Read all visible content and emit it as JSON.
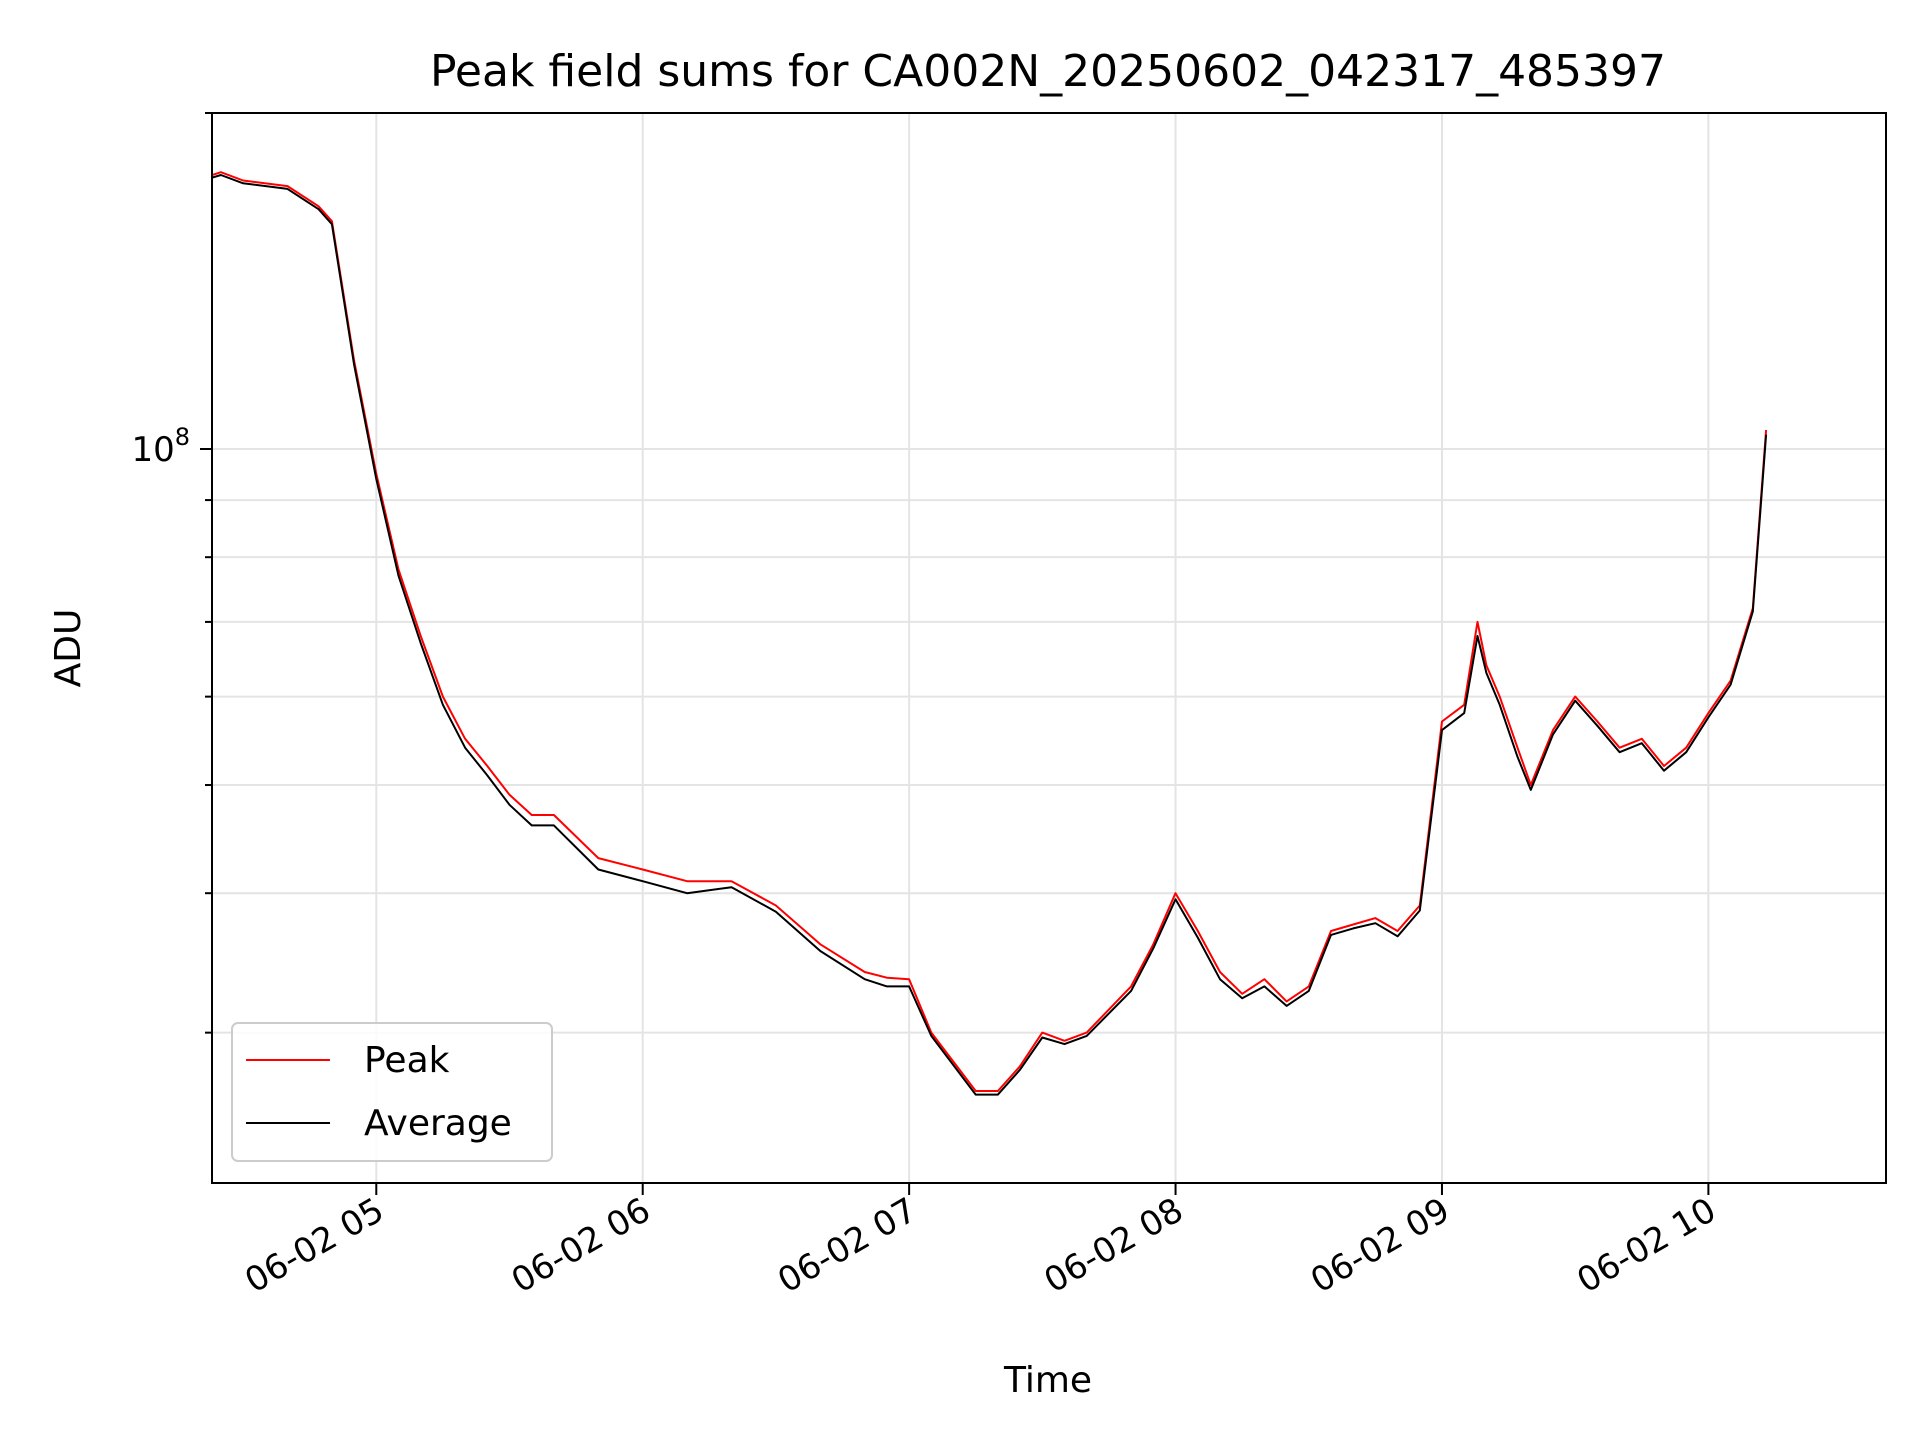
{
  "chart_data": {
    "type": "line",
    "title": "Peak field sums for CA002N_20250602_042317_485397",
    "xlabel": "Time",
    "ylabel": "ADU",
    "y_scale": "log",
    "grid": true,
    "legend_position": "lower-left",
    "x_range": [
      "06-02 04:23",
      "06-02 10:40"
    ],
    "y_range": [
      22000000,
      200000000
    ],
    "x_ticks": [
      "06-02 05",
      "06-02 06",
      "06-02 07",
      "06-02 08",
      "06-02 09",
      "06-02 10"
    ],
    "y_tick_label": {
      "base": "10",
      "exp": "8"
    },
    "colors": {
      "peak": "#ff0000",
      "average": "#000000"
    },
    "series": [
      {
        "name": "Peak",
        "x": [
          "06-02 04:23",
          "06-02 04:25",
          "06-02 04:30",
          "06-02 04:40",
          "06-02 04:47",
          "06-02 04:50",
          "06-02 04:55",
          "06-02 05:00",
          "06-02 05:05",
          "06-02 05:10",
          "06-02 05:15",
          "06-02 05:20",
          "06-02 05:25",
          "06-02 05:30",
          "06-02 05:35",
          "06-02 05:40",
          "06-02 05:50",
          "06-02 06:00",
          "06-02 06:10",
          "06-02 06:20",
          "06-02 06:30",
          "06-02 06:40",
          "06-02 06:50",
          "06-02 06:55",
          "06-02 07:00",
          "06-02 07:05",
          "06-02 07:15",
          "06-02 07:20",
          "06-02 07:25",
          "06-02 07:30",
          "06-02 07:35",
          "06-02 07:40",
          "06-02 07:50",
          "06-02 07:55",
          "06-02 08:00",
          "06-02 08:05",
          "06-02 08:10",
          "06-02 08:15",
          "06-02 08:20",
          "06-02 08:25",
          "06-02 08:30",
          "06-02 08:35",
          "06-02 08:40",
          "06-02 08:45",
          "06-02 08:50",
          "06-02 08:55",
          "06-02 09:00",
          "06-02 09:05",
          "06-02 09:08",
          "06-02 09:10",
          "06-02 09:13",
          "06-02 09:17",
          "06-02 09:20",
          "06-02 09:25",
          "06-02 09:30",
          "06-02 09:35",
          "06-02 09:40",
          "06-02 09:45",
          "06-02 09:50",
          "06-02 09:55",
          "06-02 10:00",
          "06-02 10:05",
          "06-02 10:10",
          "06-02 10:13"
        ],
        "values": [
          176000000,
          177000000,
          174000000,
          172000000,
          165000000,
          160000000,
          120000000,
          95000000,
          78000000,
          68000000,
          60000000,
          55000000,
          52000000,
          49000000,
          47000000,
          47000000,
          43000000,
          42000000,
          41000000,
          41000000,
          39000000,
          36000000,
          34000000,
          33600000,
          33500000,
          30000000,
          26600000,
          26600000,
          28000000,
          30000000,
          29500000,
          30000000,
          33000000,
          36000000,
          40000000,
          37000000,
          34000000,
          32500000,
          33500000,
          32000000,
          33000000,
          37000000,
          37500000,
          38000000,
          37000000,
          39000000,
          57000000,
          59000000,
          70000000,
          64000000,
          60000000,
          54000000,
          50000000,
          56000000,
          60000000,
          57000000,
          54000000,
          55000000,
          52000000,
          54000000,
          58000000,
          62000000,
          72000000,
          104000000
        ]
      },
      {
        "name": "Average",
        "x": [
          "06-02 04:23",
          "06-02 04:25",
          "06-02 04:30",
          "06-02 04:40",
          "06-02 04:47",
          "06-02 04:50",
          "06-02 04:55",
          "06-02 05:00",
          "06-02 05:05",
          "06-02 05:10",
          "06-02 05:15",
          "06-02 05:20",
          "06-02 05:25",
          "06-02 05:30",
          "06-02 05:35",
          "06-02 05:40",
          "06-02 05:50",
          "06-02 06:00",
          "06-02 06:10",
          "06-02 06:20",
          "06-02 06:30",
          "06-02 06:40",
          "06-02 06:50",
          "06-02 06:55",
          "06-02 07:00",
          "06-02 07:05",
          "06-02 07:15",
          "06-02 07:20",
          "06-02 07:25",
          "06-02 07:30",
          "06-02 07:35",
          "06-02 07:40",
          "06-02 07:50",
          "06-02 07:55",
          "06-02 08:00",
          "06-02 08:05",
          "06-02 08:10",
          "06-02 08:15",
          "06-02 08:20",
          "06-02 08:25",
          "06-02 08:30",
          "06-02 08:35",
          "06-02 08:40",
          "06-02 08:45",
          "06-02 08:50",
          "06-02 08:55",
          "06-02 09:00",
          "06-02 09:05",
          "06-02 09:08",
          "06-02 09:10",
          "06-02 09:13",
          "06-02 09:17",
          "06-02 09:20",
          "06-02 09:25",
          "06-02 09:30",
          "06-02 09:35",
          "06-02 09:40",
          "06-02 09:45",
          "06-02 09:50",
          "06-02 09:55",
          "06-02 10:00",
          "06-02 10:05",
          "06-02 10:10",
          "06-02 10:13"
        ],
        "values": [
          175000000,
          176000000,
          173000000,
          171000000,
          164000000,
          159000000,
          119000000,
          94000000,
          77000000,
          67000000,
          59000000,
          54000000,
          51000000,
          48000000,
          46000000,
          46000000,
          42000000,
          41000000,
          40000000,
          40500000,
          38500000,
          35500000,
          33500000,
          33000000,
          33000000,
          29800000,
          26400000,
          26400000,
          27800000,
          29700000,
          29300000,
          29800000,
          32700000,
          35700000,
          39500000,
          36500000,
          33500000,
          32200000,
          33000000,
          31700000,
          32700000,
          36700000,
          37200000,
          37600000,
          36600000,
          38600000,
          56000000,
          58000000,
          68000000,
          63000000,
          59000000,
          53000000,
          49500000,
          55500000,
          59500000,
          56500000,
          53500000,
          54500000,
          51500000,
          53500000,
          57500000,
          61500000,
          71500000,
          103000000
        ]
      }
    ]
  }
}
